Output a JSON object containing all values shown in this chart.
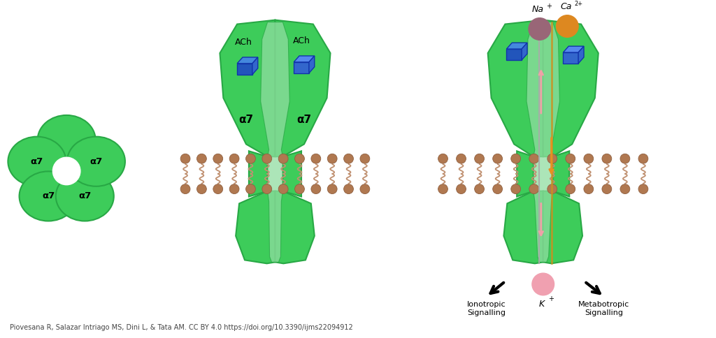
{
  "background_color": "#ffffff",
  "green_main": "#3dcc5a",
  "green_dark": "#28a845",
  "green_light": "#90dda0",
  "green_pore": "#b0e8b8",
  "brown_tail": "#c09070",
  "brown_head": "#b07850",
  "blue_dark": "#2255bb",
  "blue_light": "#4488dd",
  "pink_arrow": "#f0a0a8",
  "orange_arrow": "#e89020",
  "mauve_ion": "#996677",
  "orange_ion": "#dd8820",
  "pink_ion": "#f0a0b0",
  "caption": "Piovesana R, Salazar Intriago MS, Dini L, & Tata AM. CC BY 4.0 https://doi.org/10.3390/ijms22094912",
  "caption_fontsize": 7.0,
  "label_alpha7": "α7",
  "ach_label": "ACh"
}
